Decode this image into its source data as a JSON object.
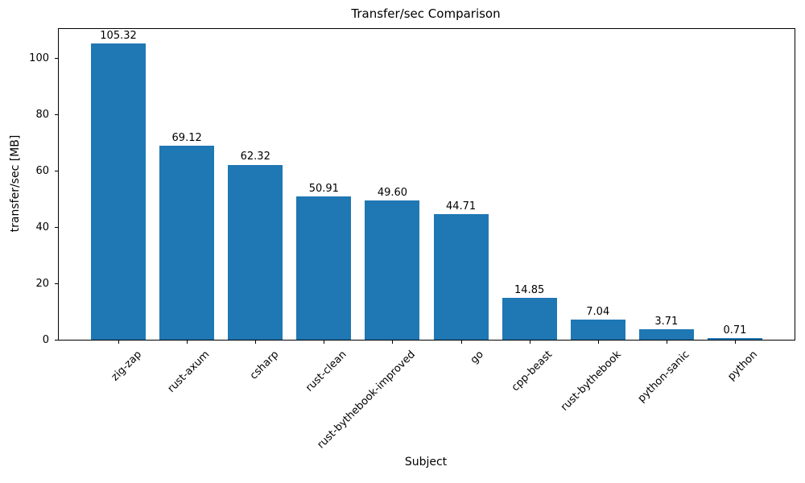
{
  "chart_data": {
    "type": "bar",
    "title": "Transfer/sec Comparison",
    "xlabel": "Subject",
    "ylabel": "transfer/sec [MB]",
    "categories": [
      "zig-zap",
      "rust-axum",
      "csharp",
      "rust-clean",
      "rust-bythebook-improved",
      "go",
      "cpp-beast",
      "rust-bythebook",
      "python-sanic",
      "python"
    ],
    "values": [
      105.32,
      69.12,
      62.32,
      50.91,
      49.6,
      44.71,
      14.85,
      7.04,
      3.71,
      0.71
    ],
    "value_labels": [
      "105.32",
      "69.12",
      "62.32",
      "50.91",
      "49.60",
      "44.71",
      "14.85",
      "7.04",
      "3.71",
      "0.71"
    ],
    "yticks": [
      0,
      20,
      40,
      60,
      80,
      100
    ],
    "ytick_labels": [
      "0",
      "20",
      "40",
      "60",
      "80",
      "100"
    ],
    "ylim": [
      0,
      110.6
    ],
    "x_tick_rotation_deg": 45,
    "bar_color": "#1f77b4",
    "text_color": "#000000",
    "background_color": "#ffffff",
    "grid": false,
    "legend": "none"
  }
}
